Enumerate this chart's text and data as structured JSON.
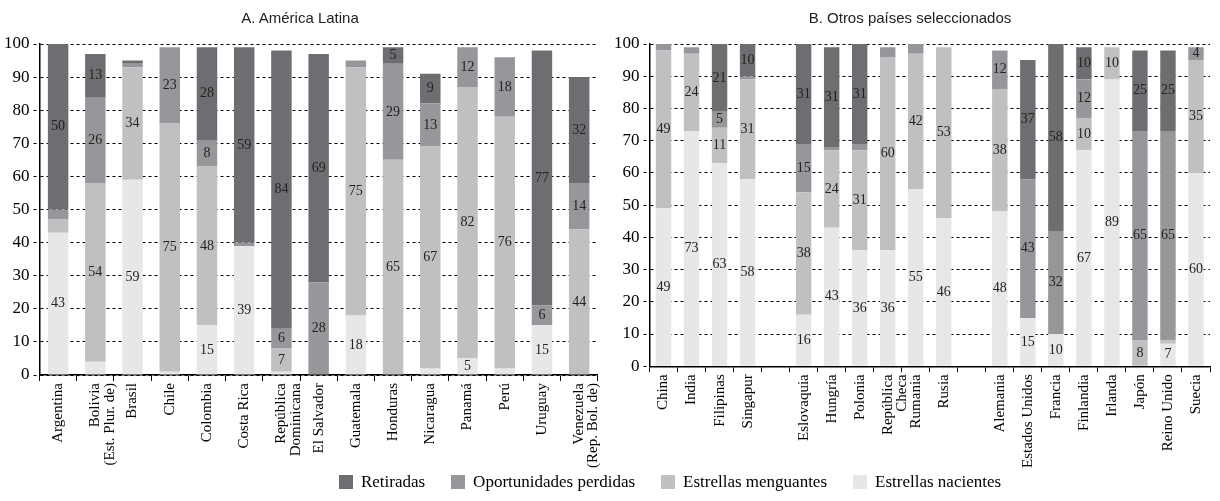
{
  "chart_data": [
    {
      "type": "bar",
      "title": "A. América Latina",
      "stacked": true,
      "categories": [
        "Argentina",
        "Bolivia\n(Est. Plur. de)",
        "Brasil",
        "Chile",
        "Colombia",
        "Costa Rica",
        "República\nDominicana",
        "El Salvador",
        "Guatemala",
        "Honduras",
        "Nicaragua",
        "Panamá",
        "Perú",
        "Uruguay",
        "Venezuela\n(Rep. Bol. de)"
      ],
      "series": [
        {
          "name": "Estrellas nacientes",
          "color": "#e6e7e8",
          "values": [
            43,
            4,
            59,
            1,
            15,
            39,
            1,
            0,
            18,
            0,
            2,
            5,
            2,
            15,
            0
          ],
          "value_labels": [
            "43",
            null,
            "59",
            null,
            "15",
            "39",
            null,
            null,
            "18",
            null,
            null,
            "5",
            null,
            "15",
            null
          ]
        },
        {
          "name": "Estrellas menguantes",
          "color": "#bfc0c2",
          "values": [
            4,
            54,
            34,
            75,
            48,
            0,
            7,
            0,
            75,
            65,
            67,
            82,
            76,
            0,
            44
          ],
          "value_labels": [
            null,
            "54",
            "34",
            "75",
            "48",
            null,
            "7",
            null,
            "75",
            "65",
            "67",
            "82",
            "76",
            null,
            "44"
          ]
        },
        {
          "name": "Oportunidades perdidas",
          "color": "#96979a",
          "values": [
            3,
            26,
            1,
            23,
            8,
            1,
            6,
            28,
            2,
            29,
            13,
            12,
            18,
            6,
            14
          ],
          "value_labels": [
            null,
            "26",
            null,
            "23",
            "8",
            null,
            "6",
            "28",
            null,
            "29",
            "13",
            "12",
            "18",
            "6",
            "14"
          ]
        },
        {
          "name": "Retiradas",
          "color": "#6d6e71",
          "values": [
            50,
            13,
            1,
            0,
            28,
            59,
            84,
            69,
            0,
            5,
            9,
            0,
            0,
            77,
            32
          ],
          "value_labels": [
            "50",
            "13",
            null,
            null,
            "28",
            "59",
            "84",
            "69",
            null,
            "5",
            "9",
            null,
            null,
            "77",
            "32"
          ]
        }
      ],
      "ylim": [
        0,
        100
      ],
      "yticks": [
        0,
        10,
        20,
        30,
        40,
        50,
        60,
        70,
        80,
        90,
        100
      ],
      "grid": "y",
      "legend": "bottom"
    },
    {
      "type": "bar",
      "title": "B. Otros países seleccionados",
      "stacked": true,
      "categories": [
        "China",
        "India",
        "Filipinas",
        "Singapur",
        null,
        "Eslovaquia",
        "Hungría",
        "Polonia",
        "República\nCheca",
        "Rumania",
        "Rusia",
        null,
        "Alemania",
        "Estados Unidos",
        "Francia",
        "Finlandia",
        "Irlanda",
        "Japón",
        "Reino Unido",
        "Suecia"
      ],
      "series": [
        {
          "color": "#e6e7e8",
          "values": [
            49,
            73,
            63,
            58,
            null,
            16,
            43,
            36,
            36,
            55,
            46,
            null,
            48,
            15,
            10,
            67,
            89,
            0,
            7,
            60
          ],
          "value_labels": [
            "49",
            "73",
            "63",
            "58",
            null,
            "16",
            "43",
            "36",
            "36",
            "55",
            "46",
            null,
            "48",
            "15",
            "10",
            "67",
            "89",
            null,
            "7",
            "60"
          ]
        },
        {
          "color": "#bfc0c2",
          "values": [
            49,
            24,
            11,
            31,
            null,
            38,
            24,
            31,
            60,
            42,
            53,
            null,
            38,
            0,
            0,
            10,
            10,
            8,
            1,
            35
          ],
          "value_labels": [
            "49",
            "24",
            "11",
            "31",
            null,
            "38",
            "24",
            "31",
            "60",
            "42",
            "53",
            null,
            "38",
            null,
            null,
            "10",
            "10",
            "8",
            null,
            "35"
          ]
        },
        {
          "color": "#96979a",
          "values": [
            2,
            2,
            5,
            1,
            null,
            15,
            1,
            2,
            3,
            3,
            0,
            null,
            12,
            43,
            32,
            12,
            0,
            65,
            65,
            4
          ],
          "value_labels": [
            null,
            null,
            "5",
            null,
            null,
            "15",
            null,
            null,
            null,
            null,
            null,
            null,
            "12",
            "43",
            "32",
            "12",
            null,
            "65",
            "65",
            "4"
          ]
        },
        {
          "color": "#6d6e71",
          "values": [
            0,
            0,
            21,
            10,
            null,
            31,
            31,
            31,
            0,
            0,
            0,
            null,
            0,
            37,
            58,
            10,
            0,
            25,
            25,
            0
          ],
          "value_labels": [
            null,
            null,
            "21",
            "10",
            null,
            "31",
            "31",
            "31",
            null,
            null,
            null,
            null,
            null,
            "37",
            "58",
            "10",
            null,
            "25",
            "25",
            null
          ]
        }
      ],
      "ylim": [
        0,
        100
      ],
      "yticks": [
        0,
        10,
        20,
        30,
        40,
        50,
        60,
        70,
        80,
        90,
        100
      ],
      "grid": "y"
    }
  ]
}
